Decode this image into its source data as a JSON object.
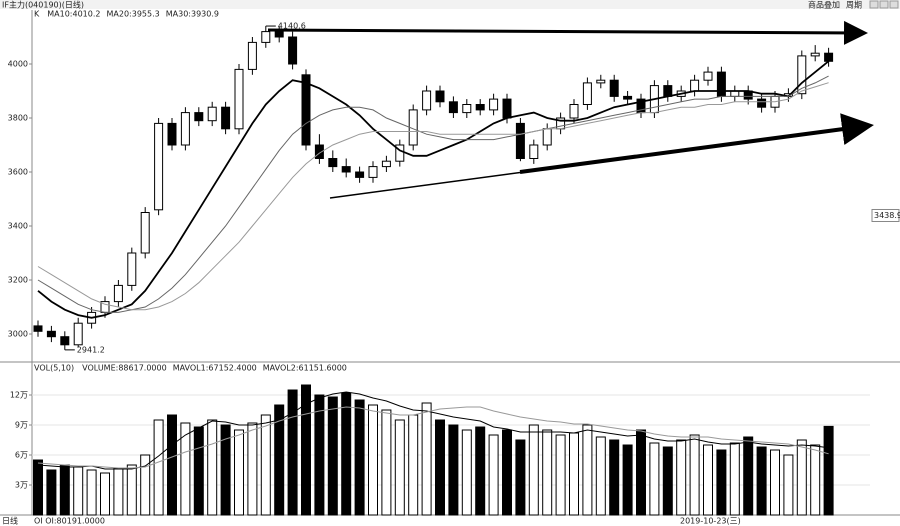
{
  "window": {
    "title": "IF主力(040190)(日线)",
    "buttons": [
      "商品叠加",
      "周期"
    ]
  },
  "footer": {
    "period": "日线",
    "oi": "OI OI:80191.0000",
    "date": "2019-10-23(三)"
  },
  "chart_data": [
    {
      "type": "candlestick",
      "legend_prefix": "K",
      "open": [
        3030,
        3010,
        2990,
        2960,
        3040,
        3080,
        3120,
        3180,
        3300,
        3460,
        3780,
        3700,
        3820,
        3790,
        3840,
        3760,
        3980,
        4080,
        4120,
        4100,
        3960,
        3700,
        3650,
        3620,
        3600,
        3580,
        3620,
        3640,
        3700,
        3830,
        3900,
        3860,
        3820,
        3850,
        3830,
        3870,
        3780,
        3650,
        3700,
        3760,
        3800,
        3850,
        3930,
        3940,
        3880,
        3870,
        3820,
        3920,
        3880,
        3900,
        3940,
        3970,
        3880,
        3900,
        3870,
        3840,
        3880,
        3890,
        4030,
        4040
      ],
      "high": [
        3050,
        3030,
        3010,
        3060,
        3100,
        3140,
        3200,
        3320,
        3470,
        3800,
        3800,
        3840,
        3840,
        3860,
        3860,
        4000,
        4100,
        4140.6,
        4140,
        4120,
        3980,
        3740,
        3680,
        3650,
        3620,
        3640,
        3660,
        3720,
        3850,
        3920,
        3920,
        3880,
        3870,
        3870,
        3890,
        3890,
        3800,
        3720,
        3780,
        3820,
        3870,
        3950,
        3960,
        3960,
        3900,
        3890,
        3940,
        3940,
        3920,
        3960,
        3990,
        3990,
        3920,
        3920,
        3890,
        3900,
        3910,
        4050,
        4070,
        4060
      ],
      "low": [
        2990,
        2970,
        2941.2,
        2950,
        3020,
        3060,
        3100,
        3160,
        3280,
        3440,
        3680,
        3680,
        3770,
        3770,
        3740,
        3740,
        3960,
        4060,
        4080,
        3980,
        3680,
        3630,
        3600,
        3580,
        3560,
        3560,
        3600,
        3620,
        3680,
        3810,
        3840,
        3800,
        3800,
        3810,
        3810,
        3780,
        3640,
        3630,
        3680,
        3740,
        3780,
        3830,
        3910,
        3860,
        3850,
        3800,
        3800,
        3860,
        3860,
        3880,
        3920,
        3860,
        3860,
        3850,
        3820,
        3820,
        3860,
        3870,
        4010,
        3990
      ],
      "close": [
        3010,
        2990,
        2960,
        3040,
        3080,
        3120,
        3180,
        3300,
        3450,
        3780,
        3700,
        3820,
        3790,
        3840,
        3760,
        3980,
        4080,
        4120,
        4100,
        4000,
        3700,
        3650,
        3620,
        3600,
        3580,
        3620,
        3640,
        3700,
        3830,
        3900,
        3860,
        3820,
        3850,
        3830,
        3870,
        3800,
        3650,
        3700,
        3760,
        3800,
        3850,
        3930,
        3940,
        3880,
        3870,
        3820,
        3920,
        3880,
        3900,
        3940,
        3970,
        3880,
        3900,
        3870,
        3840,
        3880,
        3890,
        4030,
        4040,
        4010
      ],
      "series": [
        {
          "name": "MA10:4010.2",
          "color": "#000000",
          "values": [
            3160,
            3120,
            3090,
            3070,
            3060,
            3070,
            3090,
            3110,
            3160,
            3230,
            3300,
            3380,
            3460,
            3540,
            3620,
            3700,
            3780,
            3850,
            3900,
            3940,
            3930,
            3910,
            3880,
            3850,
            3810,
            3760,
            3720,
            3680,
            3660,
            3660,
            3680,
            3700,
            3720,
            3750,
            3780,
            3800,
            3810,
            3820,
            3800,
            3790,
            3790,
            3800,
            3820,
            3840,
            3850,
            3860,
            3870,
            3880,
            3890,
            3900,
            3900,
            3900,
            3900,
            3900,
            3890,
            3890,
            3880,
            3930,
            3970,
            4010.2
          ]
        },
        {
          "name": "MA20:3955.3",
          "color": "#666666",
          "values": [
            3200,
            3170,
            3140,
            3110,
            3090,
            3080,
            3080,
            3090,
            3100,
            3130,
            3170,
            3220,
            3280,
            3340,
            3400,
            3470,
            3540,
            3610,
            3680,
            3740,
            3780,
            3810,
            3830,
            3840,
            3840,
            3830,
            3800,
            3780,
            3760,
            3740,
            3730,
            3720,
            3720,
            3720,
            3720,
            3730,
            3740,
            3750,
            3760,
            3770,
            3780,
            3790,
            3800,
            3810,
            3820,
            3830,
            3840,
            3850,
            3860,
            3870,
            3870,
            3880,
            3880,
            3880,
            3880,
            3880,
            3880,
            3910,
            3930,
            3955.3
          ]
        },
        {
          "name": "MA30:3930.9",
          "color": "#999999",
          "values": [
            3250,
            3220,
            3190,
            3160,
            3130,
            3110,
            3100,
            3090,
            3090,
            3100,
            3120,
            3150,
            3190,
            3240,
            3290,
            3340,
            3400,
            3460,
            3520,
            3580,
            3630,
            3670,
            3700,
            3720,
            3740,
            3750,
            3750,
            3750,
            3750,
            3750,
            3740,
            3740,
            3740,
            3740,
            3740,
            3740,
            3740,
            3750,
            3760,
            3760,
            3770,
            3780,
            3790,
            3800,
            3810,
            3820,
            3820,
            3830,
            3840,
            3840,
            3850,
            3850,
            3860,
            3860,
            3860,
            3860,
            3870,
            3900,
            3915,
            3930.9
          ]
        }
      ],
      "annotations": [
        {
          "label": "4140.6",
          "value": 4140.6
        },
        {
          "label": "2941.2",
          "value": 2941.2
        }
      ],
      "price_marker": {
        "label": "3438.9",
        "value": 3438.9
      },
      "ylim": [
        2900,
        4200
      ],
      "yticks": [
        3000,
        3200,
        3400,
        3600,
        3800,
        4000
      ]
    },
    {
      "type": "bar",
      "legend_prefix": "VOL(5,10)",
      "series": [
        {
          "name": "VOLUME:88617.0000",
          "color": "#000000",
          "values": [
            55000,
            45000,
            50000,
            48000,
            45000,
            42000,
            47000,
            50000,
            60000,
            95000,
            100000,
            92000,
            88000,
            95000,
            90000,
            85000,
            92000,
            100000,
            110000,
            125000,
            130000,
            120000,
            118000,
            122000,
            115000,
            110000,
            105000,
            95000,
            100000,
            112000,
            95000,
            90000,
            85000,
            88000,
            80000,
            85000,
            75000,
            90000,
            85000,
            80000,
            82000,
            90000,
            78000,
            75000,
            70000,
            85000,
            72000,
            68000,
            75000,
            80000,
            70000,
            65000,
            72000,
            78000,
            68000,
            65000,
            60000,
            75000,
            70000,
            88617
          ]
        },
        {
          "name": "MAVOL1:67152.4000",
          "color": "#000000",
          "values": [
            50000,
            49000,
            48000,
            48000,
            49000,
            46000,
            46000,
            46000,
            49000,
            59000,
            70000,
            80000,
            87000,
            94000,
            93000,
            90000,
            90000,
            92000,
            95000,
            102000,
            111000,
            117000,
            121000,
            123000,
            121000,
            117000,
            114000,
            109000,
            105000,
            104000,
            101000,
            98000,
            96000,
            94000,
            88000,
            86000,
            83000,
            83000,
            83000,
            83000,
            82000,
            85000,
            83000,
            81000,
            79000,
            80000,
            76000,
            74000,
            74000,
            76000,
            73000,
            71000,
            71000,
            73000,
            71000,
            70000,
            69000,
            70000,
            69000,
            67152.4
          ]
        },
        {
          "name": "MAVOL2:61151.6000",
          "color": "#999999",
          "values": [
            52000,
            51000,
            50000,
            49000,
            49000,
            48000,
            47000,
            47000,
            48000,
            53000,
            58000,
            63000,
            67000,
            71000,
            76000,
            80000,
            85000,
            89000,
            94000,
            98000,
            101000,
            104000,
            106000,
            108000,
            107000,
            104000,
            102000,
            100000,
            100000,
            103000,
            106000,
            107000,
            108000,
            108000,
            104000,
            101000,
            98000,
            96000,
            94000,
            93000,
            91000,
            91000,
            89000,
            87000,
            85000,
            84000,
            81000,
            79000,
            78000,
            78000,
            78000,
            76000,
            75000,
            74000,
            73000,
            72000,
            71000,
            68000,
            65000,
            61151.6
          ]
        }
      ],
      "ylim": [
        0,
        150000
      ],
      "yticks": [
        {
          "value": 30000,
          "label": "3万"
        },
        {
          "value": 60000,
          "label": "6万"
        },
        {
          "value": 90000,
          "label": "9万"
        },
        {
          "value": 120000,
          "label": "12万"
        }
      ]
    }
  ]
}
